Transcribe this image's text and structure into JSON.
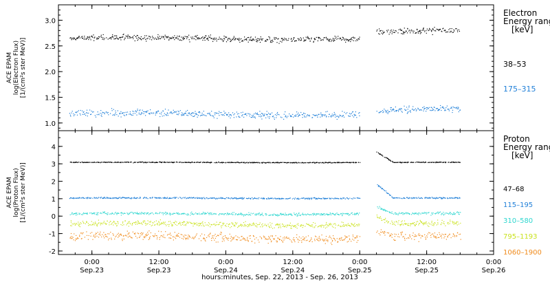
{
  "chart_data": [
    {
      "type": "scatter",
      "ylabel_lines": [
        "ACE EPAM",
        "log(Electron Flux)",
        "[1/(cm²s ster MeV)]"
      ],
      "ylim": [
        0.85,
        3.3
      ],
      "yticks": [
        "1.0",
        "1.5",
        "2.0",
        "2.5",
        "3.0"
      ],
      "legend_title": [
        "Electron",
        "Energy ranges",
        "[keV]"
      ],
      "series": [
        {
          "name": "38–53",
          "color": "#000000",
          "level": 2.65,
          "spread": 0.07,
          "late_level": 2.78
        },
        {
          "name": "175–315",
          "color": "#1f7fd8",
          "level": 1.18,
          "spread": 0.08,
          "late_level": 1.25
        }
      ],
      "data_gap": [
        "Sep.25 00:00",
        "Sep.25 03:00"
      ]
    },
    {
      "type": "scatter",
      "ylabel_lines": [
        "ACE EPAM",
        "log(Proton Flux)",
        "[1/(cm²s ster MeV)]"
      ],
      "ylim": [
        -2.2,
        4.9
      ],
      "yticks": [
        "-2",
        "-1",
        "0",
        "1",
        "2",
        "3",
        "4"
      ],
      "legend_title": [
        "Proton",
        "Energy ranges",
        "[keV]"
      ],
      "series": [
        {
          "name": "47–68",
          "color": "#000000",
          "level": 3.1,
          "spread": 0.03
        },
        {
          "name": "115–195",
          "color": "#1f7fd8",
          "level": 1.05,
          "spread": 0.05
        },
        {
          "name": "310–580",
          "color": "#2dd6cf",
          "level": 0.15,
          "spread": 0.1
        },
        {
          "name": "795–1193",
          "color": "#c9e21c",
          "level": -0.45,
          "spread": 0.2
        },
        {
          "name": "1060–1900",
          "color": "#f08a1a",
          "level": -1.2,
          "spread": 0.3
        }
      ],
      "data_gap": [
        "Sep.25 00:00",
        "Sep.25 03:00"
      ]
    }
  ],
  "x_axis": {
    "range": [
      "2013-09-22 18:00",
      "2013-09-26 00:00"
    ],
    "data_end": "2013-09-25 18:00",
    "ticks": [
      {
        "time": "0:00",
        "date": "Sep.23"
      },
      {
        "time": "12:00",
        "date": "Sep.23"
      },
      {
        "time": "0:00",
        "date": "Sep.24"
      },
      {
        "time": "12:00",
        "date": "Sep.24"
      },
      {
        "time": "0:00",
        "date": "Sep.25"
      },
      {
        "time": "12:00",
        "date": "Sep.25"
      },
      {
        "time": "0:00",
        "date": "Sep.26"
      }
    ],
    "label": "hours:minutes, Sep. 22, 2013 - Sep. 26, 2013"
  }
}
